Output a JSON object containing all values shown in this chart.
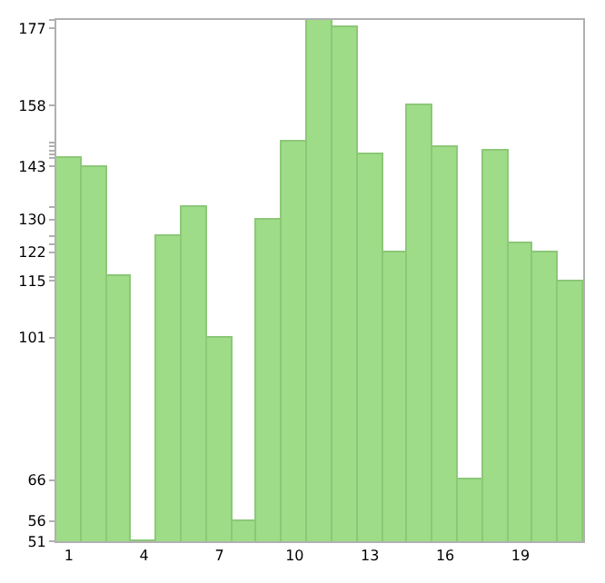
{
  "chart_data": {
    "type": "bar",
    "categories": [
      "1",
      null,
      null,
      "4",
      null,
      null,
      "7",
      null,
      null,
      "10",
      null,
      null,
      "13",
      null,
      null,
      "16",
      null,
      null,
      "19",
      null,
      null
    ],
    "values": [
      145,
      143,
      116,
      51,
      126,
      133,
      101,
      56,
      130,
      149,
      179,
      177,
      146,
      122,
      158,
      148,
      66,
      147,
      124,
      122,
      115
    ],
    "color": "#9edc88",
    "ylim": [
      51,
      179
    ],
    "yticks": [
      51,
      56,
      66,
      101,
      115,
      {
        "value": 116,
        "label": null
      },
      122,
      {
        "value": 124,
        "label": null
      },
      {
        "value": 126,
        "label": null
      },
      130,
      {
        "value": 133,
        "label": null
      },
      143,
      {
        "value": 145,
        "label": null
      },
      {
        "value": 146,
        "label": null
      },
      {
        "value": 147,
        "label": null
      },
      {
        "value": 148,
        "label": null
      },
      {
        "value": 149,
        "label": null
      },
      158,
      177,
      {
        "value": 179,
        "label": null
      }
    ],
    "legend": false
  }
}
